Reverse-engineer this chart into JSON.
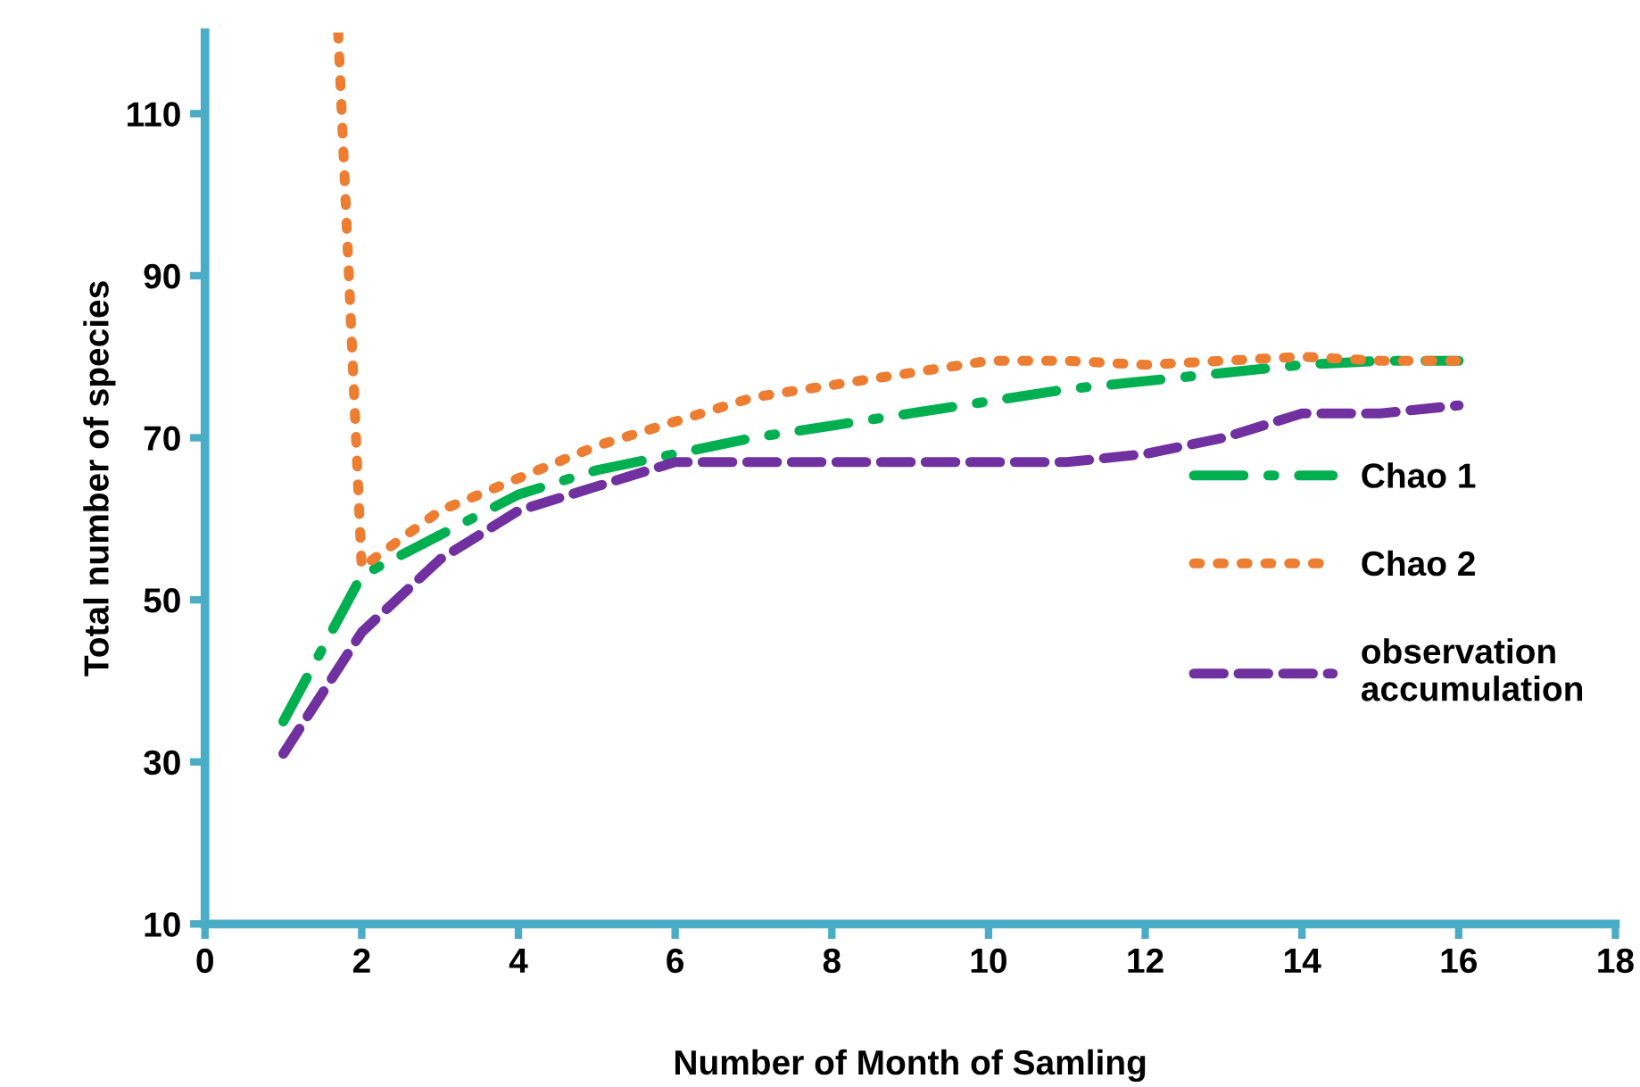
{
  "chart_data": {
    "type": "line",
    "xlabel": "Number of Month of Samling",
    "ylabel": "Total number of species",
    "x": [
      1,
      2,
      3,
      4,
      5,
      6,
      7,
      8,
      9,
      10,
      11,
      12,
      13,
      14,
      15,
      16
    ],
    "series": [
      {
        "name": "Chao 1",
        "color": "#00b050",
        "line_style": "dashdot",
        "values": [
          35,
          53,
          58,
          63,
          66,
          68,
          70,
          71.5,
          73,
          74.5,
          76,
          77,
          78,
          79,
          79.5,
          79.5
        ]
      },
      {
        "name": "Chao 2",
        "color": "#ed7d31",
        "line_style": "dotted",
        "x": [
          1.7,
          2,
          3,
          4,
          5,
          6,
          7,
          8,
          9,
          10,
          11,
          12,
          13,
          14,
          15,
          16
        ],
        "values": [
          120,
          54,
          61,
          65,
          69,
          72,
          75,
          76.5,
          78,
          79.5,
          79.5,
          79,
          79.5,
          80,
          79.5,
          79.5
        ]
      },
      {
        "name": "observation\naccumulation",
        "color": "#7030a0",
        "line_style": "dashed",
        "values": [
          31,
          46,
          55,
          61,
          64,
          67,
          67,
          67,
          67,
          67,
          67,
          68,
          70,
          73,
          73,
          74
        ]
      }
    ],
    "xlim": [
      0,
      18
    ],
    "xticks": [
      0,
      2,
      4,
      6,
      8,
      10,
      12,
      14,
      16,
      18
    ],
    "ylim": [
      10,
      120
    ],
    "yticks": [
      10,
      30,
      50,
      70,
      90,
      110
    ],
    "grid": false,
    "legend": "right",
    "marker": "none"
  }
}
